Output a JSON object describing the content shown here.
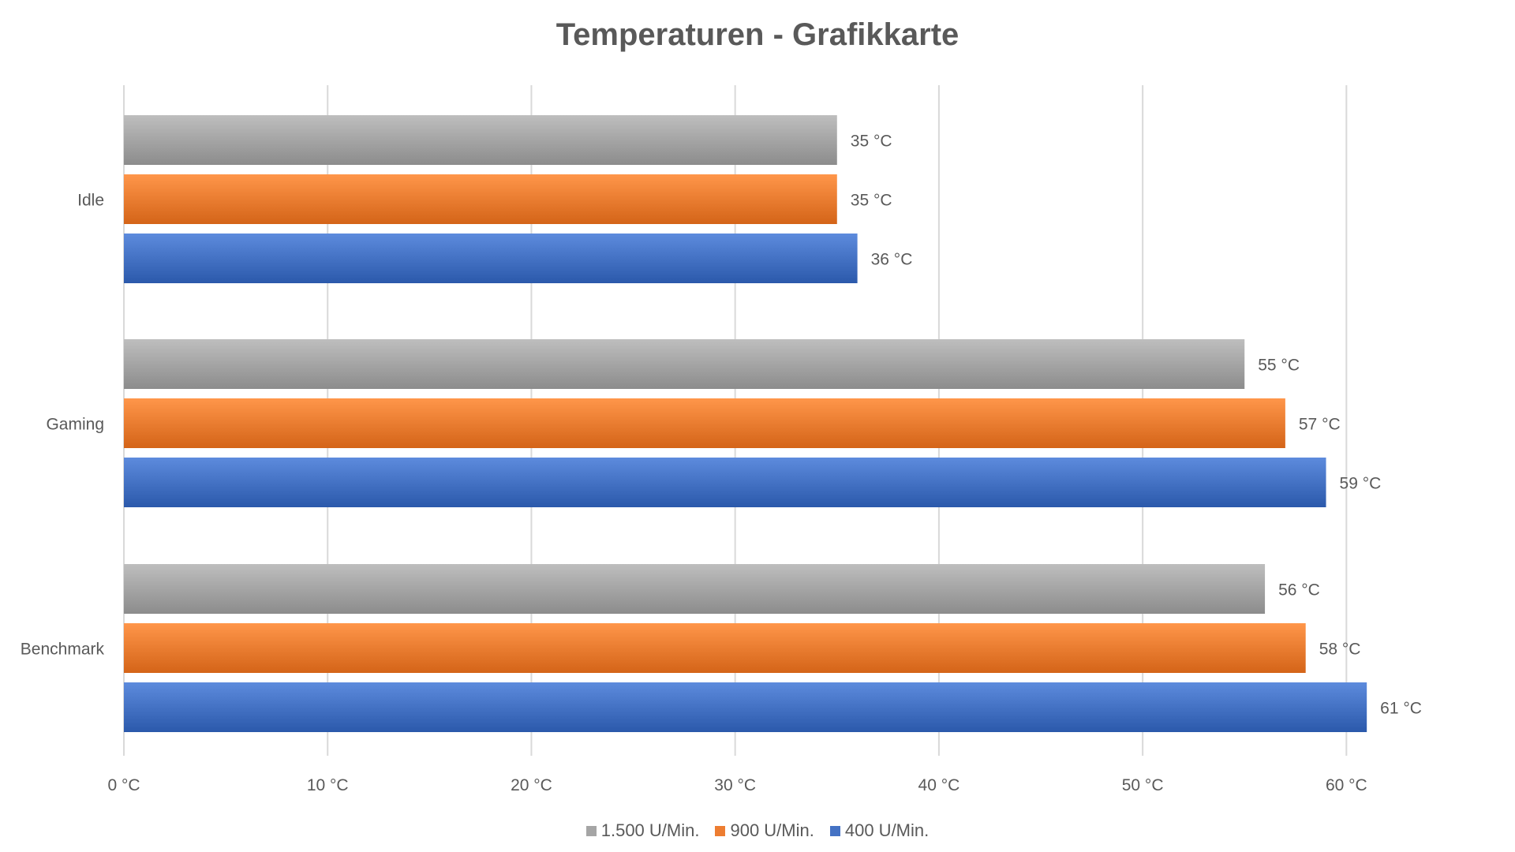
{
  "chart_data": {
    "type": "bar",
    "orientation": "horizontal",
    "title": "Temperaturen - Grafikkarte",
    "xlabel": "",
    "ylabel": "",
    "categories": [
      "Idle",
      "Gaming",
      "Benchmark"
    ],
    "series": [
      {
        "name": "1.500 U/Min.",
        "color": "#a5a5a5",
        "values": [
          35,
          55,
          56
        ]
      },
      {
        "name": "900 U/Min.",
        "color": "#ed7d31",
        "values": [
          35,
          57,
          58
        ]
      },
      {
        "name": "400 U/Min.",
        "color": "#4472c4",
        "values": [
          36,
          59,
          61
        ]
      }
    ],
    "xlim": [
      0,
      62
    ],
    "x_ticks": [
      0,
      10,
      20,
      30,
      40,
      50,
      60
    ],
    "tick_suffix": " °C",
    "data_label_suffix": " °C",
    "grid": true,
    "legend_position": "bottom"
  }
}
